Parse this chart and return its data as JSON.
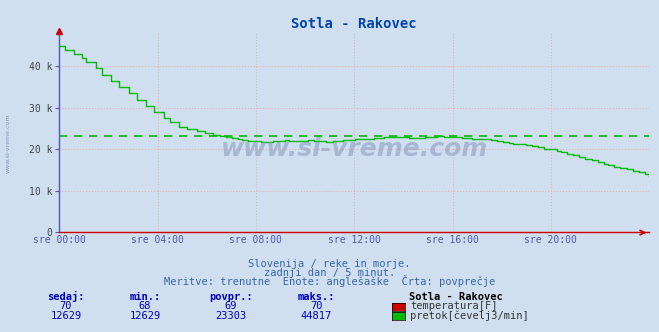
{
  "title": "Sotla - Rakovec",
  "bg_color": "#d0dff0",
  "plot_bg_color": "#d0dff0",
  "x_labels": [
    "sre 00:00",
    "sre 04:00",
    "sre 08:00",
    "sre 12:00",
    "sre 16:00",
    "sre 20:00"
  ],
  "y_max": 48000,
  "y_ticks": [
    0,
    10000,
    20000,
    30000,
    40000
  ],
  "y_tick_labels": [
    "0",
    "10 k",
    "20 k",
    "30 k",
    "40 k"
  ],
  "avg_flow": 23303,
  "flow_color": "#00bb00",
  "temp_color": "#cc0000",
  "avg_line_color": "#00bb00",
  "grid_color": "#e8b0b0",
  "grid_color2": "#c8c8d8",
  "left_axis_color": "#5555bb",
  "bottom_axis_color": "#cc0000",
  "tick_color": "#5555aa",
  "subtitle1": "Slovenija / reke in morje.",
  "subtitle2": "zadnji dan / 5 minut.",
  "subtitle3": "Meritve: trenutne  Enote: anglešaške  Črta: povprečje",
  "footer_label1": "sedaj:",
  "footer_label2": "min.:",
  "footer_label3": "povpr.:",
  "footer_label4": "maks.:",
  "footer_label5": "Sotla - Rakovec",
  "temp_sedaj": "70",
  "temp_min": "68",
  "temp_povpr": "69",
  "temp_maks": "70",
  "flow_sedaj": "12629",
  "flow_min": "12629",
  "flow_povpr": "23303",
  "flow_maks": "44817",
  "legend_temp": "temperatura[F]",
  "legend_flow": "pretok[čevelj3/min]",
  "watermark": "www.si-vreme.com"
}
